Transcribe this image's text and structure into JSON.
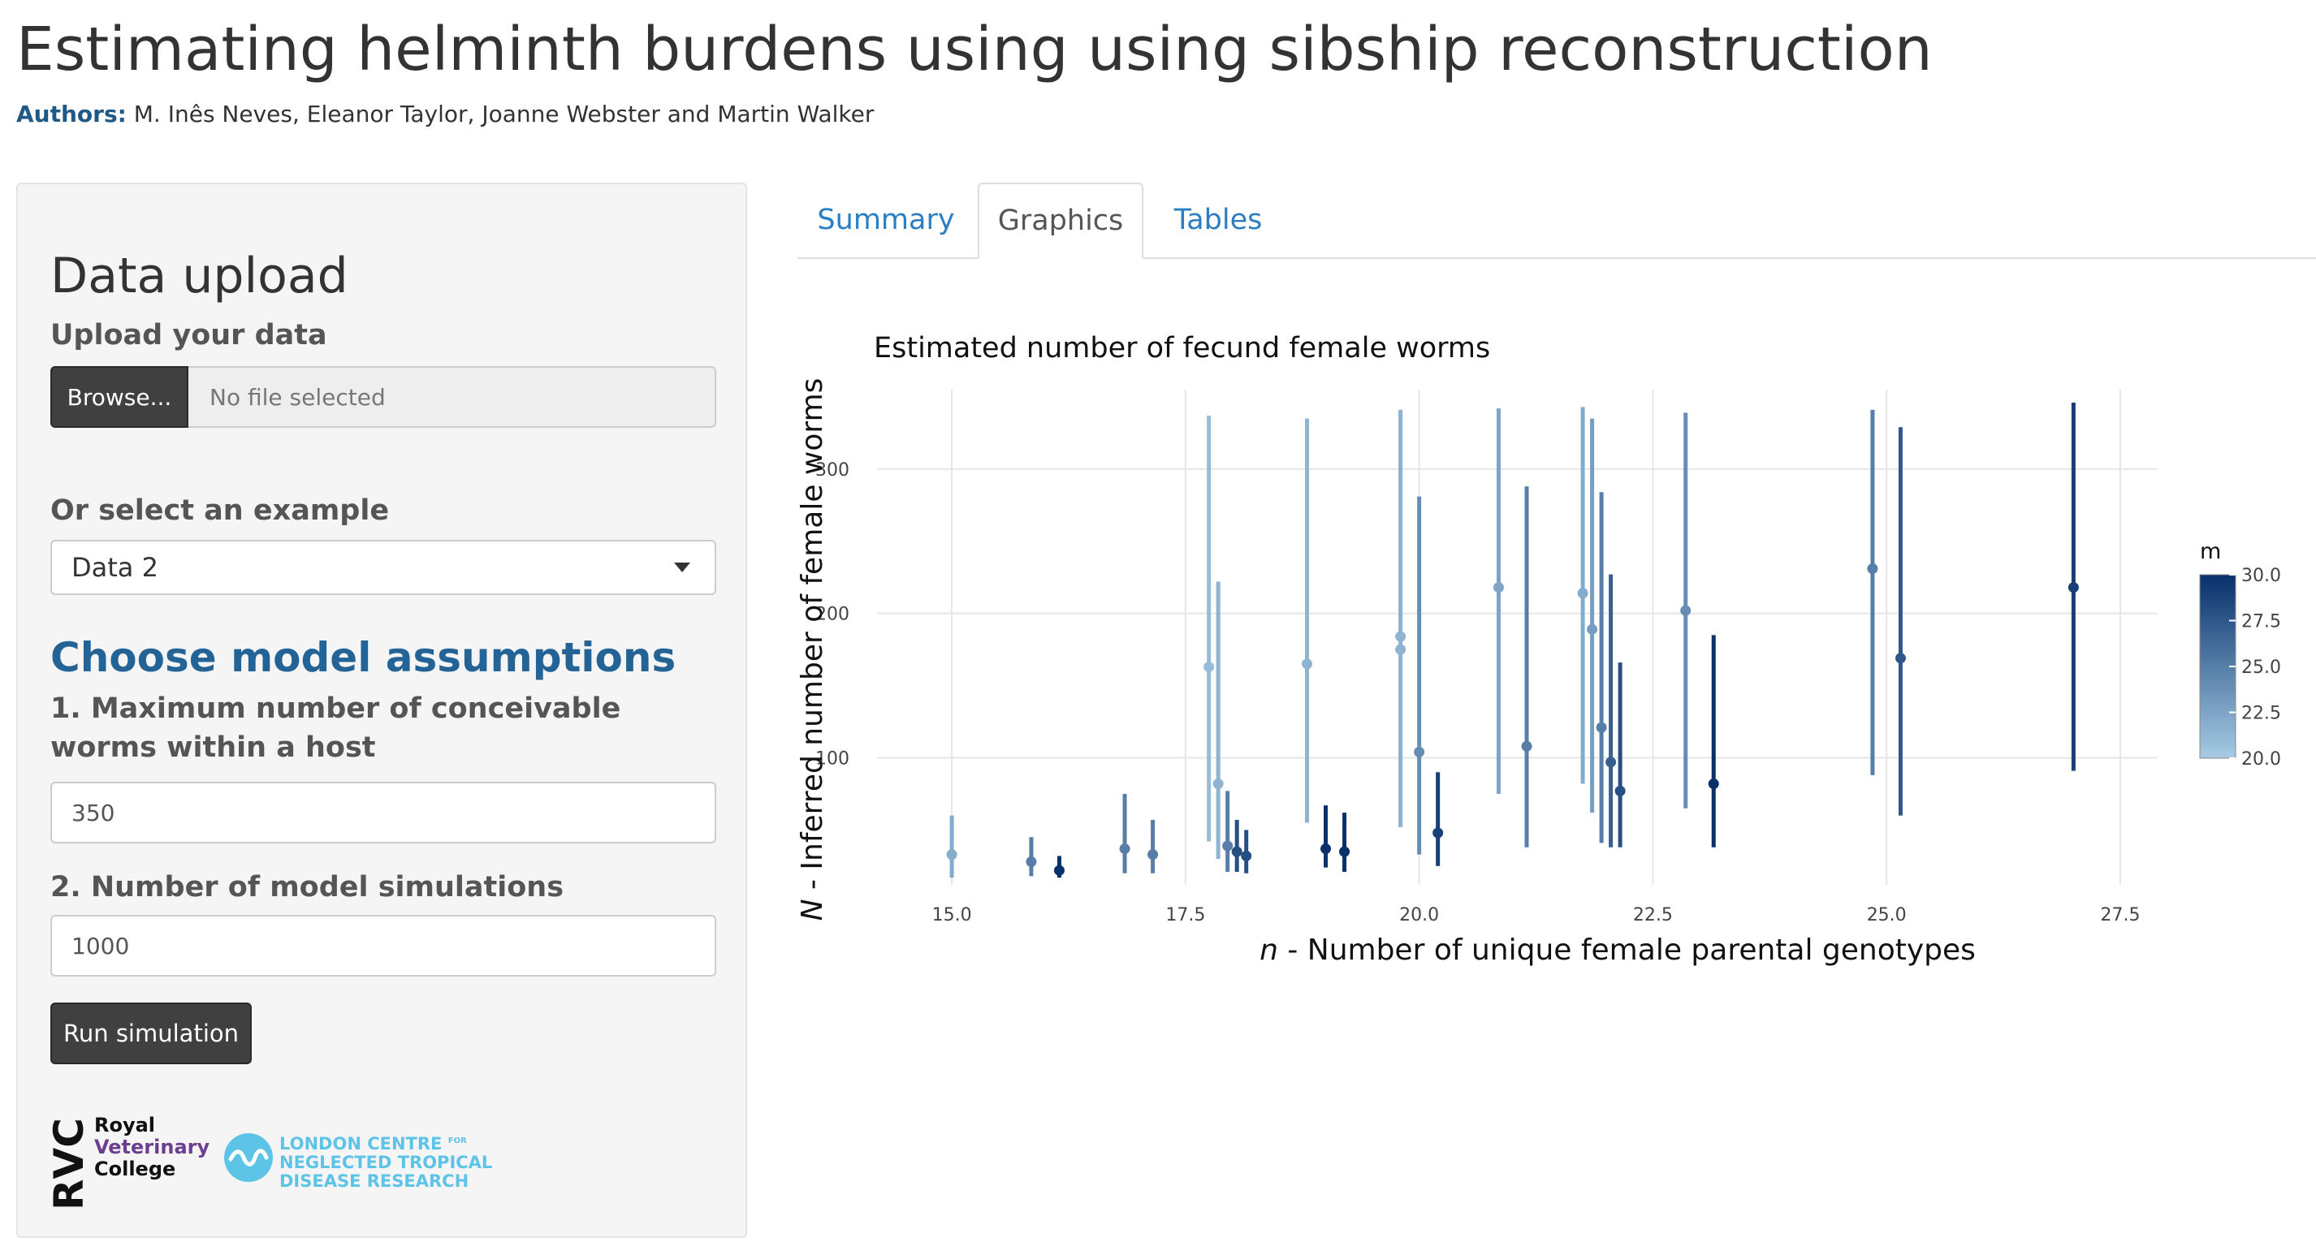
{
  "header": {
    "title": "Estimating helminth burdens using using sibship reconstruction",
    "authors_label": "Authors:",
    "authors": "M. Inês Neves, Eleanor Taylor, Joanne Webster and Martin Walker"
  },
  "sidebar": {
    "title": "Data upload",
    "upload_label": "Upload your data",
    "browse_label": "Browse...",
    "file_placeholder": "No file selected",
    "example_label": "Or select an example",
    "example_value": "Data 2",
    "assumptions_title": "Choose model assumptions",
    "max_worms_label": "1. Maximum number of conceivable worms within a host",
    "max_worms_value": "350",
    "simulations_label": "2. Number of model simulations",
    "simulations_value": "1000",
    "run_label": "Run simulation",
    "rvc_letters": "RVC",
    "rvc_line1": "Royal",
    "rvc_line2": "Veterinary",
    "rvc_line3": "College",
    "lcntdr_line1": "LONDON CENTRE",
    "lcntdr_for": "FOR",
    "lcntdr_line2": "NEGLECTED TROPICAL",
    "lcntdr_line3": "DISEASE RESEARCH"
  },
  "tabs": [
    {
      "label": "Summary",
      "active": false
    },
    {
      "label": "Graphics",
      "active": true
    },
    {
      "label": "Tables",
      "active": false
    }
  ],
  "colors": {
    "accent": "#2a7ec4",
    "heading_blue": "#246396",
    "scale_low": "#a6cbe4",
    "scale_high": "#08306b"
  },
  "chart_data": {
    "type": "scatter",
    "title": "Estimated number of fecund female worms",
    "xlabel_italic": "n",
    "xlabel_rest": " - Number of unique female parental genotypes",
    "ylabel_italic": "N",
    "ylabel_rest": " - Inferred number of female worms",
    "xlim": [
      14.2,
      27.9
    ],
    "ylim": [
      12,
      355
    ],
    "x_ticks": [
      15.0,
      17.5,
      20.0,
      22.5,
      25.0,
      27.5
    ],
    "x_tick_labels": [
      "15.0",
      "17.5",
      "20.0",
      "22.5",
      "25.0",
      "27.5"
    ],
    "y_ticks": [
      100,
      200,
      300
    ],
    "y_tick_labels": [
      "100",
      "200",
      "300"
    ],
    "grid": true,
    "legend": {
      "title": "m",
      "position": "right",
      "min": 20.0,
      "max": 30.0,
      "ticks": [
        20.0,
        22.5,
        25.0,
        27.5,
        30.0
      ],
      "tick_labels": [
        "20.0",
        "22.5",
        "25.0",
        "27.5",
        "30.0"
      ]
    },
    "points": [
      {
        "x": 15.0,
        "y": 33,
        "low": 17,
        "high": 60,
        "m": 22
      },
      {
        "x": 15.85,
        "y": 28,
        "low": 18,
        "high": 45,
        "m": 25
      },
      {
        "x": 16.15,
        "y": 22,
        "low": 17,
        "high": 32,
        "m": 30
      },
      {
        "x": 16.85,
        "y": 37,
        "low": 20,
        "high": 75,
        "m": 25
      },
      {
        "x": 17.15,
        "y": 33,
        "low": 20,
        "high": 57,
        "m": 25
      },
      {
        "x": 17.75,
        "y": 163,
        "low": 42,
        "high": 337,
        "m": 21
      },
      {
        "x": 17.85,
        "y": 82,
        "low": 30,
        "high": 222,
        "m": 21.5
      },
      {
        "x": 17.95,
        "y": 39,
        "low": 21,
        "high": 77,
        "m": 25
      },
      {
        "x": 18.05,
        "y": 35,
        "low": 21,
        "high": 57,
        "m": 28
      },
      {
        "x": 18.15,
        "y": 32,
        "low": 20,
        "high": 50,
        "m": 28
      },
      {
        "x": 18.8,
        "y": 165,
        "low": 55,
        "high": 335,
        "m": 21.5
      },
      {
        "x": 19.0,
        "y": 37,
        "low": 24,
        "high": 67,
        "m": 30
      },
      {
        "x": 19.2,
        "y": 35,
        "low": 21,
        "high": 62,
        "m": 30
      },
      {
        "x": 19.8,
        "y": 175,
        "low": 52,
        "high": 341,
        "m": 21.5
      },
      {
        "x": 19.8,
        "y": 184,
        "low": 52,
        "high": 341,
        "m": 21.5
      },
      {
        "x": 20.0,
        "y": 104,
        "low": 33,
        "high": 281,
        "m": 24
      },
      {
        "x": 20.2,
        "y": 48,
        "low": 25,
        "high": 90,
        "m": 29
      },
      {
        "x": 20.85,
        "y": 218,
        "low": 75,
        "high": 342,
        "m": 22.5
      },
      {
        "x": 21.15,
        "y": 108,
        "low": 38,
        "high": 288,
        "m": 25
      },
      {
        "x": 21.75,
        "y": 214,
        "low": 82,
        "high": 343,
        "m": 22
      },
      {
        "x": 21.85,
        "y": 189,
        "low": 62,
        "high": 335,
        "m": 23
      },
      {
        "x": 21.95,
        "y": 121,
        "low": 41,
        "high": 284,
        "m": 25
      },
      {
        "x": 22.05,
        "y": 97,
        "low": 38,
        "high": 227,
        "m": 27
      },
      {
        "x": 22.15,
        "y": 77,
        "low": 38,
        "high": 166,
        "m": 28
      },
      {
        "x": 22.85,
        "y": 202,
        "low": 65,
        "high": 339,
        "m": 24
      },
      {
        "x": 23.15,
        "y": 82,
        "low": 38,
        "high": 185,
        "m": 30
      },
      {
        "x": 24.85,
        "y": 231,
        "low": 88,
        "high": 341,
        "m": 25
      },
      {
        "x": 25.15,
        "y": 169,
        "low": 60,
        "high": 329,
        "m": 27.5
      },
      {
        "x": 27.0,
        "y": 218,
        "low": 91,
        "high": 346,
        "m": 29
      }
    ]
  }
}
